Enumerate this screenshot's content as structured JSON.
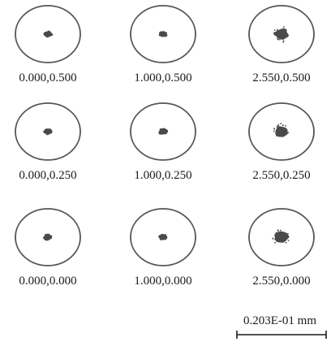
{
  "spots": [
    {
      "label": "0.000,0.500",
      "spot_size": "small"
    },
    {
      "label": "1.000,0.500",
      "spot_size": "small"
    },
    {
      "label": "2.550,0.500",
      "spot_size": "large"
    },
    {
      "label": "0.000,0.250",
      "spot_size": "small"
    },
    {
      "label": "1.000,0.250",
      "spot_size": "small"
    },
    {
      "label": "2.550,0.250",
      "spot_size": "large"
    },
    {
      "label": "0.000,0.000",
      "spot_size": "small"
    },
    {
      "label": "1.000,0.000",
      "spot_size": "small"
    },
    {
      "label": "2.550,0.000",
      "spot_size": "large"
    }
  ],
  "scale_bar": {
    "label": "0.203E-01 mm"
  },
  "colors": {
    "circle": "#555555",
    "spot": "#4a4a4a",
    "text": "#1a1a1a"
  }
}
